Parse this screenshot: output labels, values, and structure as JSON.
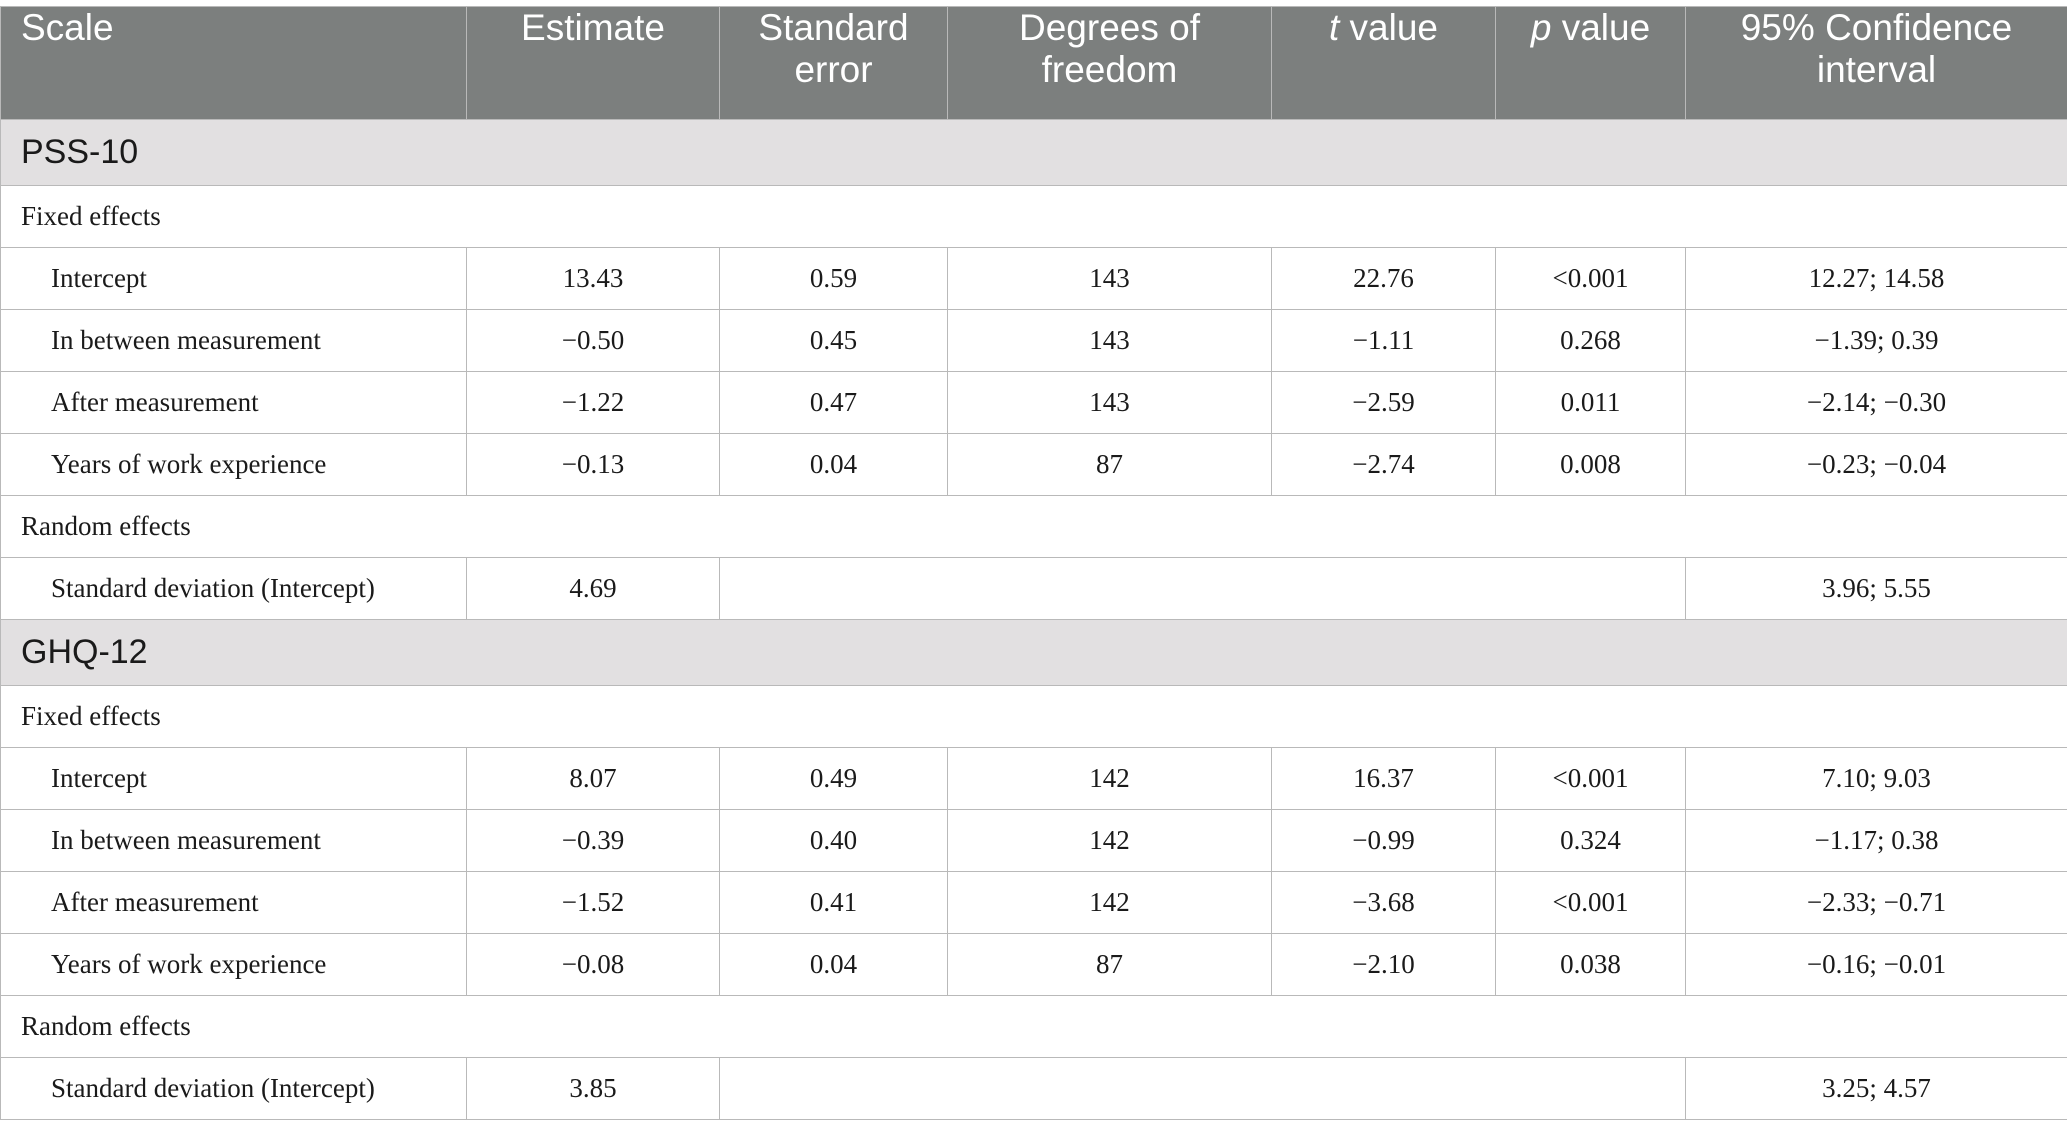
{
  "header": {
    "scale": "Scale",
    "estimate": "Estimate",
    "se_line1": "Standard",
    "se_line2": "error",
    "df_line1": "Degrees of",
    "df_line2": "freedom",
    "t_italic": "t",
    "t_rest": " value",
    "p_italic": "p",
    "p_rest": " value",
    "ci_line1": "95% Confidence",
    "ci_line2": "interval"
  },
  "sections": [
    {
      "title": "PSS-10",
      "fixed_label": "Fixed effects",
      "fixed": [
        {
          "label": "Intercept",
          "estimate": "13.43",
          "se": "0.59",
          "df": "143",
          "t": "22.76",
          "p": "<0.001",
          "ci": "12.27; 14.58"
        },
        {
          "label": "In between measurement",
          "estimate": "−0.50",
          "se": "0.45",
          "df": "143",
          "t": "−1.11",
          "p": "0.268",
          "ci": "−1.39; 0.39"
        },
        {
          "label": "After measurement",
          "estimate": "−1.22",
          "se": "0.47",
          "df": "143",
          "t": "−2.59",
          "p": "0.011",
          "ci": "−2.14; −0.30"
        },
        {
          "label": "Years of work experience",
          "estimate": "−0.13",
          "se": "0.04",
          "df": "87",
          "t": "−2.74",
          "p": "0.008",
          "ci": "−0.23; −0.04"
        }
      ],
      "random_label": "Random effects",
      "random": {
        "label": "Standard deviation (Intercept)",
        "estimate": "4.69",
        "ci": "3.96; 5.55"
      }
    },
    {
      "title": "GHQ-12",
      "fixed_label": "Fixed effects",
      "fixed": [
        {
          "label": "Intercept",
          "estimate": "8.07",
          "se": "0.49",
          "df": "142",
          "t": "16.37",
          "p": "<0.001",
          "ci": "7.10; 9.03"
        },
        {
          "label": "In between measurement",
          "estimate": "−0.39",
          "se": "0.40",
          "df": "142",
          "t": "−0.99",
          "p": "0.324",
          "ci": "−1.17; 0.38"
        },
        {
          "label": "After measurement",
          "estimate": "−1.52",
          "se": "0.41",
          "df": "142",
          "t": "−3.68",
          "p": "<0.001",
          "ci": "−2.33; −0.71"
        },
        {
          "label": "Years of work experience",
          "estimate": "−0.08",
          "se": "0.04",
          "df": "87",
          "t": "−2.10",
          "p": "0.038",
          "ci": "−0.16; −0.01"
        }
      ],
      "random_label": "Random effects",
      "random": {
        "label": "Standard deviation (Intercept)",
        "estimate": "3.85",
        "ci": "3.25; 4.57"
      }
    }
  ]
}
